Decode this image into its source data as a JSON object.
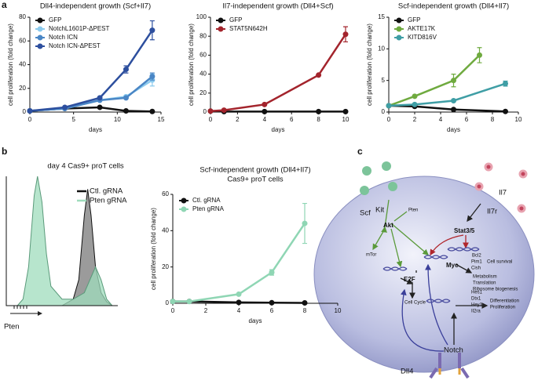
{
  "panels": [
    "a",
    "b",
    "c"
  ],
  "chart_data": [
    {
      "type": "line",
      "title": "Dll4-independent growth (Scf+Il7)",
      "xlabel": "days",
      "ylabel": "cell proliferation (fold change)",
      "xlim": [
        0,
        15
      ],
      "xticks": [
        0,
        5,
        10,
        15
      ],
      "ylim": [
        0,
        80
      ],
      "yticks": [
        0,
        20,
        40,
        60,
        80
      ],
      "series": [
        {
          "name": "GFP",
          "color": "#111111",
          "x": [
            0,
            4,
            8,
            11,
            14
          ],
          "values": [
            1,
            3,
            4,
            1,
            0.5
          ],
          "errors": [
            null,
            null,
            null,
            null,
            null
          ]
        },
        {
          "name": "NotchL1601P-ΔPEST",
          "color": "#8ccbee",
          "x": [
            0,
            4,
            8,
            11,
            14
          ],
          "values": [
            1,
            3,
            10,
            13,
            27
          ],
          "errors": [
            null,
            null,
            null,
            null,
            5
          ]
        },
        {
          "name": "Notch ICN",
          "color": "#4a86c5",
          "x": [
            0,
            4,
            8,
            11,
            14
          ],
          "values": [
            1,
            3,
            10,
            12,
            30
          ],
          "errors": [
            null,
            null,
            null,
            null,
            3
          ]
        },
        {
          "name": "Notch ICN-ΔPEST",
          "color": "#2d4f9e",
          "x": [
            0,
            4,
            8,
            11,
            14
          ],
          "values": [
            1,
            4,
            12,
            36,
            69
          ],
          "errors": [
            null,
            null,
            null,
            3,
            8
          ]
        }
      ]
    },
    {
      "type": "line",
      "title": "Il7-independent growth (Dll4+Scf)",
      "xlabel": "days",
      "ylabel": "cell proliferation (fold change)",
      "xlim": [
        0,
        10
      ],
      "xticks": [
        0,
        2,
        4,
        6,
        8,
        10
      ],
      "ylim": [
        0,
        100
      ],
      "yticks": [
        0,
        20,
        40,
        60,
        80,
        100
      ],
      "series": [
        {
          "name": "GFP",
          "color": "#111111",
          "x": [
            0,
            1,
            4,
            8,
            10
          ],
          "values": [
            1,
            0.5,
            0.5,
            0.5,
            0.5
          ],
          "errors": [
            null,
            null,
            null,
            null,
            null
          ]
        },
        {
          "name": "STAT5N642H",
          "color": "#a3242c",
          "x": [
            0,
            1,
            4,
            8,
            10
          ],
          "values": [
            1,
            2,
            8,
            39,
            82
          ],
          "errors": [
            null,
            null,
            null,
            null,
            8
          ]
        }
      ]
    },
    {
      "type": "line",
      "title": "Scf-independent growth (Dll4+Il7)",
      "xlabel": "days",
      "ylabel": "cell proliferation (fold change)",
      "xlim": [
        0,
        10
      ],
      "xticks": [
        0,
        2,
        4,
        6,
        8,
        10
      ],
      "ylim": [
        0,
        15
      ],
      "yticks": [
        0,
        5,
        10,
        15
      ],
      "series": [
        {
          "name": "GFP",
          "color": "#111111",
          "x": [
            0,
            2,
            5,
            9
          ],
          "values": [
            1,
            0.9,
            0.4,
            0.1
          ],
          "errors": [
            null,
            null,
            null,
            null
          ]
        },
        {
          "name": "AKTE17K",
          "color": "#6faa3f",
          "x": [
            0,
            2,
            5,
            7
          ],
          "values": [
            1,
            2.5,
            5,
            9
          ],
          "errors": [
            null,
            null,
            1,
            1.2
          ]
        },
        {
          "name": "KITD816V",
          "color": "#3f9ea5",
          "x": [
            0,
            2,
            5,
            9
          ],
          "values": [
            1,
            1.2,
            1.8,
            4.5
          ],
          "errors": [
            null,
            null,
            null,
            0.4
          ]
        }
      ]
    },
    {
      "type": "line",
      "title": "Scf-independent growth (Dll4+Il7)",
      "subtitle": "Cas9+ proT cells",
      "xlabel": "days",
      "ylabel": "cell proliferation (fold change)",
      "xlim": [
        0,
        10
      ],
      "xticks": [
        0,
        2,
        4,
        6,
        8,
        10
      ],
      "ylim": [
        0,
        60
      ],
      "yticks": [
        0,
        20,
        40,
        60
      ],
      "series": [
        {
          "name": "Ctl. gRNA",
          "color": "#111111",
          "x": [
            0,
            1,
            4,
            6,
            8
          ],
          "values": [
            1,
            1,
            0.5,
            0.3,
            0.2
          ],
          "errors": [
            null,
            null,
            null,
            null,
            null
          ]
        },
        {
          "name": "Pten gRNA",
          "color": "#8fd6b4",
          "x": [
            0,
            1,
            4,
            6,
            8
          ],
          "values": [
            1,
            1,
            5,
            17,
            44
          ],
          "errors": [
            null,
            null,
            null,
            1.5,
            11
          ]
        }
      ]
    },
    {
      "type": "density",
      "title": "day 4 Cas9+ proT cells",
      "xlabel": "Pten",
      "xlim": [
        0,
        100
      ],
      "ylim": [
        0,
        100
      ],
      "series": [
        {
          "name": "Ctl. gRNA",
          "color": "#7a7a7a",
          "x": [
            50,
            60,
            65,
            70,
            73,
            76,
            80,
            85,
            90,
            95
          ],
          "values": [
            0,
            5,
            20,
            70,
            90,
            70,
            30,
            10,
            3,
            0
          ]
        },
        {
          "name": "Pten gRNA",
          "color": "#9fdcbc",
          "x": [
            10,
            15,
            20,
            25,
            28,
            32,
            36,
            40,
            50,
            60,
            70,
            75,
            80,
            85,
            90,
            95
          ],
          "values": [
            0,
            5,
            30,
            85,
            100,
            80,
            40,
            15,
            5,
            5,
            10,
            20,
            30,
            20,
            5,
            0
          ]
        }
      ]
    }
  ],
  "diagram": {
    "scf": "Scf",
    "kit": "Kit",
    "pten": "Pten",
    "akt": "Akt",
    "mtor": "mTor",
    "il7": "Il7",
    "il7r": "Il7r",
    "stat": "Stat3/5",
    "bcl2": "Bcl2",
    "pim1": "Pim1",
    "cish": "Cish",
    "survival": "Cell survival",
    "myc": "Myc",
    "metabolism": "Metabolism",
    "translation": "Translation",
    "ribosome": "Ribosome biogenesis",
    "e2f": "E2F",
    "cycle": "Cell Cycle",
    "hes1": "Hes1",
    "dtx1": "Dtx1",
    "hey1": "Hey1",
    "il2ra": "Il2ra",
    "differentiation": "Differentiation",
    "proliferation": "Proliferation",
    "notch": "Notch",
    "dll4": "Dll4"
  }
}
